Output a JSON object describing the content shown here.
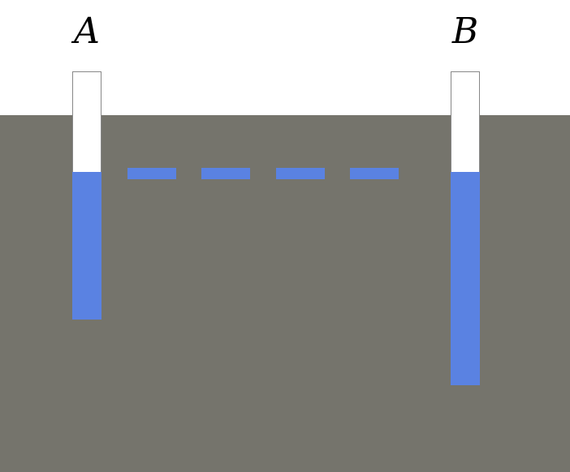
{
  "colors": {
    "ground": "#75746c",
    "water": "#5a82e2",
    "tube_empty": "#ffffff"
  },
  "wells": [
    {
      "label": "A"
    },
    {
      "label": "B"
    }
  ],
  "water_table": {
    "style": "dashed"
  }
}
